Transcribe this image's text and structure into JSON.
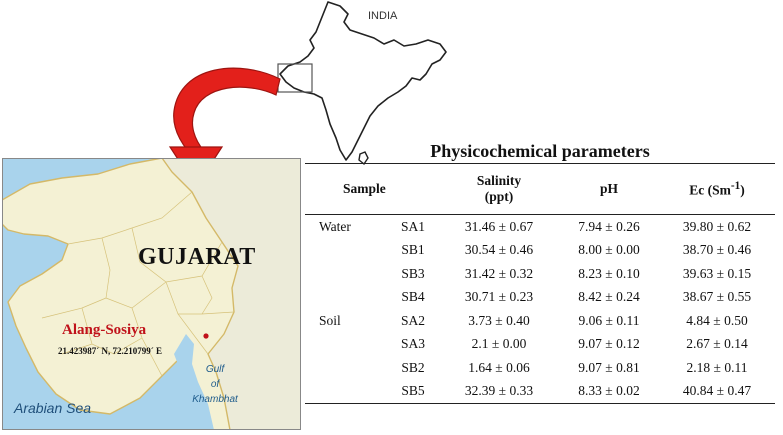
{
  "india_map": {
    "label": "INDIA"
  },
  "gujarat_map": {
    "state_label": "GUJARAT",
    "site": {
      "name": "Alang-Sosiya",
      "coordinates": "21.423987ˊ N, 72.210799ˊ E",
      "marker_color": "#c0121a"
    },
    "gulf_label": [
      "Gulf",
      "of",
      "Khambhat"
    ],
    "sea_label": "Arabian Sea",
    "colors": {
      "land": "#f4f1d4",
      "sea": "#a9d3ec",
      "border": "#d4b968",
      "arrow": "#e3201b"
    }
  },
  "table": {
    "title": "Physicochemical parameters",
    "headers": {
      "sample": "Sample",
      "salinity": [
        "Salinity",
        "(ppt)"
      ],
      "ph": "pH",
      "ec_prefix": "Ec (Sm",
      "ec_sup": "-1",
      "ec_suffix": ")"
    },
    "rows": [
      {
        "type": "Water",
        "id": "SA1",
        "salinity": "31.46 ± 0.67",
        "ph": "7.94 ± 0.26",
        "ec": "39.80 ± 0.62"
      },
      {
        "type": "",
        "id": "SB1",
        "salinity": "30.54 ± 0.46",
        "ph": "8.00 ± 0.00",
        "ec": "38.70 ± 0.46"
      },
      {
        "type": "",
        "id": "SB3",
        "salinity": "31.42 ± 0.32",
        "ph": "8.23 ± 0.10",
        "ec": "39.63 ± 0.15"
      },
      {
        "type": "",
        "id": "SB4",
        "salinity": "30.71 ± 0.23",
        "ph": "8.42 ± 0.24",
        "ec": "38.67 ± 0.55"
      },
      {
        "type": "Soil",
        "id": "SA2",
        "salinity": "3.73 ± 0.40",
        "ph": "9.06 ± 0.11",
        "ec": "4.84 ± 0.50"
      },
      {
        "type": "",
        "id": "SA3",
        "salinity": "2.1 ± 0.00",
        "ph": "9.07 ± 0.12",
        "ec": "2.67 ± 0.14"
      },
      {
        "type": "",
        "id": "SB2",
        "salinity": "1.64 ± 0.06",
        "ph": "9.07 ± 0.81",
        "ec": "2.18 ± 0.11"
      },
      {
        "type": "",
        "id": "SB5",
        "salinity": "32.39 ± 0.33",
        "ph": "8.33 ± 0.02",
        "ec": "40.84 ± 0.47"
      }
    ]
  }
}
